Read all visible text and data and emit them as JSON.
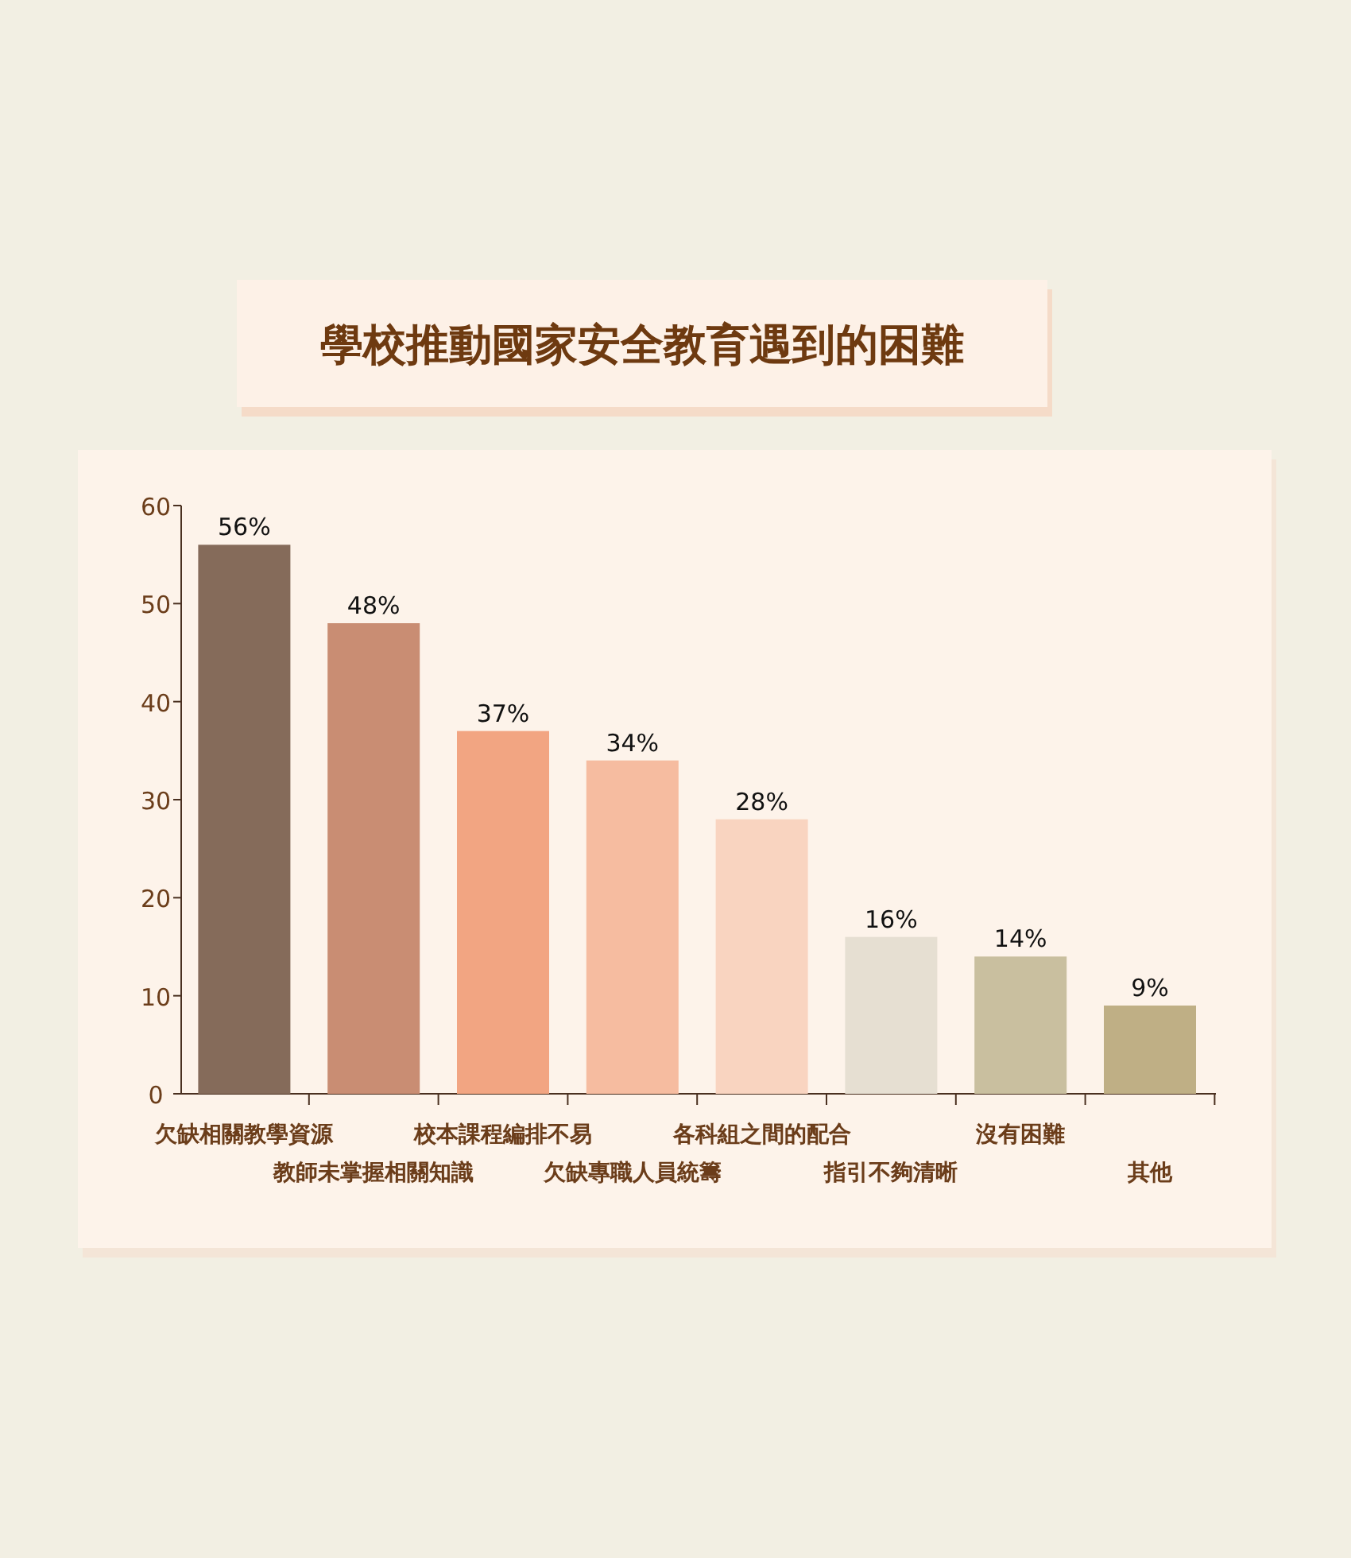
{
  "chart_data": {
    "type": "bar",
    "title": "學校推動國家安全教育遇到的困難",
    "categories": [
      "欠缺相關教學資源",
      "教師未掌握相關知識",
      "校本課程編排不易",
      "欠缺專職人員統籌",
      "各科組之間的配合",
      "指引不夠清晰",
      "沒有困難",
      "其他"
    ],
    "values": [
      56,
      48,
      37,
      34,
      28,
      16,
      14,
      9
    ],
    "colors": [
      "#856b5a",
      "#c98d73",
      "#f2a582",
      "#f6bca0",
      "#f9d4c0",
      "#e6dfd2",
      "#c9bf9f",
      "#bfaf85"
    ],
    "value_labels": [
      "56%",
      "48%",
      "37%",
      "34%",
      "28%",
      "16%",
      "14%",
      "9%"
    ],
    "ylim": [
      0,
      60
    ],
    "yticks": [
      0,
      10,
      20,
      30,
      40,
      50,
      60
    ]
  }
}
